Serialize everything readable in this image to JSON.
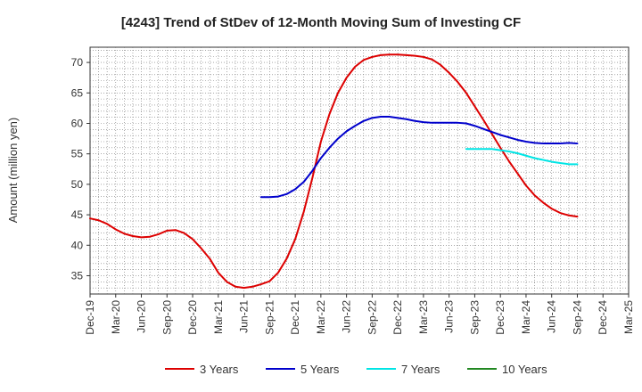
{
  "chart_data": {
    "type": "line",
    "title": "[4243]  Trend of StDev of 12-Month Moving Sum of Investing CF",
    "xlabel": "",
    "ylabel": "Amount (million yen)",
    "ylim": [
      32,
      72.5
    ],
    "yticks": [
      35,
      40,
      45,
      50,
      55,
      60,
      65,
      70
    ],
    "x_range": [
      "2019-12",
      "2025-03"
    ],
    "x_ticks": [
      "Dec-19",
      "Mar-20",
      "Jun-20",
      "Sep-20",
      "Dec-20",
      "Mar-21",
      "Jun-21",
      "Sep-21",
      "Dec-21",
      "Mar-22",
      "Jun-22",
      "Sep-22",
      "Dec-22",
      "Mar-23",
      "Jun-23",
      "Sep-23",
      "Dec-23",
      "Mar-24",
      "Jun-24",
      "Sep-24",
      "Dec-24",
      "Mar-25"
    ],
    "grid": true,
    "legend_position": "bottom",
    "series": [
      {
        "name": "3 Years",
        "color": "#dd0000",
        "points": [
          [
            "2019-12",
            44.4
          ],
          [
            "2020-01",
            44.1
          ],
          [
            "2020-02",
            43.5
          ],
          [
            "2020-03",
            42.6
          ],
          [
            "2020-04",
            41.9
          ],
          [
            "2020-05",
            41.5
          ],
          [
            "2020-06",
            41.3
          ],
          [
            "2020-07",
            41.4
          ],
          [
            "2020-08",
            41.8
          ],
          [
            "2020-09",
            42.4
          ],
          [
            "2020-10",
            42.5
          ],
          [
            "2020-11",
            42.0
          ],
          [
            "2020-12",
            41.0
          ],
          [
            "2021-01",
            39.5
          ],
          [
            "2021-02",
            37.8
          ],
          [
            "2021-03",
            35.5
          ],
          [
            "2021-04",
            34.0
          ],
          [
            "2021-05",
            33.2
          ],
          [
            "2021-06",
            33.0
          ],
          [
            "2021-07",
            33.2
          ],
          [
            "2021-08",
            33.6
          ],
          [
            "2021-09",
            34.1
          ],
          [
            "2021-10",
            35.5
          ],
          [
            "2021-11",
            37.8
          ],
          [
            "2021-12",
            41.0
          ],
          [
            "2022-01",
            45.5
          ],
          [
            "2022-02",
            51.0
          ],
          [
            "2022-03",
            57.0
          ],
          [
            "2022-04",
            61.5
          ],
          [
            "2022-05",
            65.0
          ],
          [
            "2022-06",
            67.5
          ],
          [
            "2022-07",
            69.3
          ],
          [
            "2022-08",
            70.4
          ],
          [
            "2022-09",
            70.9
          ],
          [
            "2022-10",
            71.2
          ],
          [
            "2022-11",
            71.3
          ],
          [
            "2022-12",
            71.3
          ],
          [
            "2023-01",
            71.2
          ],
          [
            "2023-02",
            71.1
          ],
          [
            "2023-03",
            70.9
          ],
          [
            "2023-04",
            70.5
          ],
          [
            "2023-05",
            69.6
          ],
          [
            "2023-06",
            68.3
          ],
          [
            "2023-07",
            66.8
          ],
          [
            "2023-08",
            65.0
          ],
          [
            "2023-09",
            62.8
          ],
          [
            "2023-10",
            60.6
          ],
          [
            "2023-11",
            58.3
          ],
          [
            "2023-12",
            56.0
          ],
          [
            "2024-01",
            53.8
          ],
          [
            "2024-02",
            51.8
          ],
          [
            "2024-03",
            49.8
          ],
          [
            "2024-04",
            48.2
          ],
          [
            "2024-05",
            47.0
          ],
          [
            "2024-06",
            46.0
          ],
          [
            "2024-07",
            45.3
          ],
          [
            "2024-08",
            44.9
          ],
          [
            "2024-09",
            44.7
          ]
        ]
      },
      {
        "name": "5 Years",
        "color": "#0000cc",
        "points": [
          [
            "2021-08",
            47.9
          ],
          [
            "2021-09",
            47.9
          ],
          [
            "2021-10",
            48.0
          ],
          [
            "2021-11",
            48.4
          ],
          [
            "2021-12",
            49.2
          ],
          [
            "2022-01",
            50.4
          ],
          [
            "2022-02",
            52.2
          ],
          [
            "2022-03",
            54.3
          ],
          [
            "2022-04",
            56.0
          ],
          [
            "2022-05",
            57.5
          ],
          [
            "2022-06",
            58.7
          ],
          [
            "2022-07",
            59.6
          ],
          [
            "2022-08",
            60.4
          ],
          [
            "2022-09",
            60.9
          ],
          [
            "2022-10",
            61.1
          ],
          [
            "2022-11",
            61.1
          ],
          [
            "2022-12",
            60.9
          ],
          [
            "2023-01",
            60.7
          ],
          [
            "2023-02",
            60.4
          ],
          [
            "2023-03",
            60.2
          ],
          [
            "2023-04",
            60.1
          ],
          [
            "2023-05",
            60.1
          ],
          [
            "2023-06",
            60.1
          ],
          [
            "2023-07",
            60.1
          ],
          [
            "2023-08",
            60.0
          ],
          [
            "2023-09",
            59.6
          ],
          [
            "2023-10",
            59.1
          ],
          [
            "2023-11",
            58.6
          ],
          [
            "2023-12",
            58.1
          ],
          [
            "2024-01",
            57.7
          ],
          [
            "2024-02",
            57.3
          ],
          [
            "2024-03",
            57.0
          ],
          [
            "2024-04",
            56.8
          ],
          [
            "2024-05",
            56.7
          ],
          [
            "2024-06",
            56.7
          ],
          [
            "2024-07",
            56.7
          ],
          [
            "2024-08",
            56.8
          ],
          [
            "2024-09",
            56.7
          ]
        ]
      },
      {
        "name": "7 Years",
        "color": "#00e5e5",
        "points": [
          [
            "2023-08",
            55.8
          ],
          [
            "2023-09",
            55.8
          ],
          [
            "2023-10",
            55.8
          ],
          [
            "2023-11",
            55.8
          ],
          [
            "2023-12",
            55.6
          ],
          [
            "2024-01",
            55.4
          ],
          [
            "2024-02",
            55.1
          ],
          [
            "2024-03",
            54.7
          ],
          [
            "2024-04",
            54.3
          ],
          [
            "2024-05",
            54.0
          ],
          [
            "2024-06",
            53.7
          ],
          [
            "2024-07",
            53.5
          ],
          [
            "2024-08",
            53.3
          ],
          [
            "2024-09",
            53.3
          ]
        ]
      },
      {
        "name": "10 Years",
        "color": "#228822",
        "points": []
      }
    ]
  }
}
